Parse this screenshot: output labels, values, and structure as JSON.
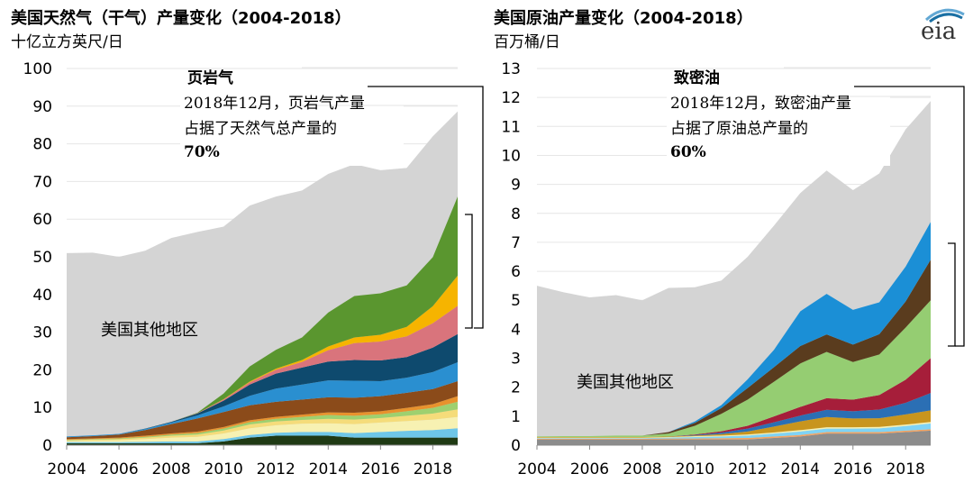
{
  "brand": {
    "logo_text": "eia",
    "accent": "#1a6fa3",
    "accent2": "#63a8d4"
  },
  "chart_data": [
    {
      "type": "area",
      "title": "美国天然气（干气）产量变化（2004-2018）",
      "ylabel": "十亿立方英尺/日",
      "xlabel": "",
      "ylim": [
        0,
        100
      ],
      "yticks": [
        0,
        10,
        20,
        30,
        40,
        50,
        60,
        70,
        80,
        90,
        100
      ],
      "xticks": [
        "2004",
        "2006",
        "2008",
        "2010",
        "2012",
        "2014",
        "2016",
        "2018"
      ],
      "x": [
        2004,
        2005,
        2006,
        2007,
        2008,
        2009,
        2010,
        2011,
        2012,
        2013,
        2014,
        2015,
        2016,
        2017,
        2018,
        2018.95
      ],
      "total": {
        "name": "美国其他地区",
        "color": "#d4d4d4",
        "values": [
          51,
          50.5,
          50,
          51,
          55,
          56,
          58,
          63,
          66,
          67,
          72,
          74,
          73,
          73,
          82,
          88
        ]
      },
      "series": [
        {
          "name": "layer1",
          "color": "#1f3a14",
          "values": [
            0.5,
            0.5,
            0.5,
            0.5,
            0.5,
            0.5,
            1,
            2,
            2.5,
            2.5,
            2.5,
            2,
            2,
            2,
            2,
            2
          ]
        },
        {
          "name": "layer2",
          "color": "#6ec6e8",
          "values": [
            0.3,
            0.3,
            0.3,
            0.4,
            0.5,
            0.5,
            0.6,
            0.7,
            0.8,
            1,
            1,
            1.2,
            1.5,
            1.8,
            2,
            2.5
          ]
        },
        {
          "name": "layer3",
          "color": "#f7f1b2",
          "values": [
            0.3,
            0.4,
            0.5,
            0.7,
            1,
            1.2,
            1.5,
            1.8,
            2,
            2.2,
            2.3,
            2.4,
            2.5,
            2.6,
            2.8,
            3
          ]
        },
        {
          "name": "layer4",
          "color": "#f5dc7a",
          "values": [
            0.2,
            0.3,
            0.3,
            0.4,
            0.5,
            0.6,
            0.8,
            1,
            1,
            1,
            1.2,
            1.2,
            1.2,
            1.4,
            1.6,
            2
          ]
        },
        {
          "name": "layer5",
          "color": "#9ed06f",
          "values": [
            0.1,
            0.1,
            0.2,
            0.2,
            0.3,
            0.4,
            0.5,
            0.6,
            0.7,
            0.8,
            1,
            1,
            1,
            1.2,
            1.5,
            2
          ]
        },
        {
          "name": "layer6",
          "color": "#e8922d",
          "values": [
            0.2,
            0.2,
            0.2,
            0.3,
            0.3,
            0.4,
            0.4,
            0.5,
            0.5,
            0.6,
            0.7,
            0.8,
            0.8,
            0.9,
            1,
            1.5
          ]
        },
        {
          "name": "layer7",
          "color": "#8b4b1a",
          "values": [
            0.5,
            0.6,
            0.8,
            1.5,
            2.5,
            3.5,
            4,
            4,
            4,
            4,
            4,
            4,
            4,
            4,
            4,
            4
          ]
        },
        {
          "name": "layer8",
          "color": "#2a8fd0",
          "values": [
            0.2,
            0.2,
            0.2,
            0.3,
            0.4,
            0.8,
            1.5,
            2.5,
            3.5,
            4,
            4.5,
            4.5,
            4,
            4,
            4.5,
            5
          ]
        },
        {
          "name": "layer9",
          "color": "#0e4a6e",
          "values": [
            0,
            0,
            0,
            0.1,
            0.2,
            0.5,
            1.5,
            3,
            4,
            4.5,
            5,
            5.5,
            5.5,
            5.5,
            6.5,
            7.5
          ]
        },
        {
          "name": "layer10",
          "color": "#d9747c",
          "values": [
            0,
            0,
            0,
            0,
            0,
            0.1,
            0.3,
            0.6,
            1,
            1.5,
            3,
            4.5,
            5,
            5.5,
            6.5,
            7.5
          ]
        },
        {
          "name": "layer11",
          "color": "#f6b400",
          "values": [
            0,
            0,
            0,
            0,
            0,
            0,
            0.1,
            0.2,
            0.3,
            0.5,
            1,
            1.5,
            1.8,
            2.5,
            4.5,
            8
          ]
        },
        {
          "name": "layer12",
          "color": "#5a962f",
          "values": [
            0,
            0,
            0,
            0,
            0,
            0.1,
            1.5,
            4,
            5,
            6,
            9,
            11,
            11,
            11,
            13,
            21
          ]
        }
      ],
      "annotation": {
        "title": "页岩气",
        "line1": "2018年12月，页岩气产量",
        "line2": "占据了天然气总产量的",
        "value": "70%"
      },
      "region_label": "美国其他地区"
    },
    {
      "type": "area",
      "title": "美国原油产量变化（2004-2018）",
      "ylabel": "百万桶/日",
      "xlabel": "",
      "ylim": [
        0,
        13
      ],
      "yticks": [
        0,
        1,
        2,
        3,
        4,
        5,
        6,
        7,
        8,
        9,
        10,
        11,
        12,
        13
      ],
      "xticks": [
        "2004",
        "2006",
        "2008",
        "2010",
        "2012",
        "2014",
        "2016",
        "2018"
      ],
      "x": [
        2004,
        2005,
        2006,
        2007,
        2008,
        2009,
        2010,
        2011,
        2012,
        2013,
        2014,
        2015,
        2016,
        2017,
        2018,
        2018.95
      ],
      "total": {
        "name": "美国其他地区",
        "color": "#d4d4d4",
        "values": [
          5.5,
          5.2,
          5.1,
          5.1,
          5.0,
          5.35,
          5.45,
          5.6,
          6.5,
          7.5,
          8.7,
          9.4,
          8.8,
          9.3,
          10.9,
          11.8
        ]
      },
      "series": [
        {
          "name": "layer1",
          "color": "#8c8c8c",
          "values": [
            0.2,
            0.2,
            0.2,
            0.2,
            0.2,
            0.2,
            0.2,
            0.2,
            0.2,
            0.25,
            0.3,
            0.4,
            0.4,
            0.4,
            0.45,
            0.5
          ]
        },
        {
          "name": "layer2",
          "color": "#f3a463",
          "values": [
            0.02,
            0.02,
            0.02,
            0.02,
            0.02,
            0.03,
            0.03,
            0.04,
            0.05,
            0.05,
            0.05,
            0.05,
            0.05,
            0.05,
            0.05,
            0.05
          ]
        },
        {
          "name": "layer3",
          "color": "#7fd3f5",
          "values": [
            0.02,
            0.02,
            0.02,
            0.02,
            0.02,
            0.03,
            0.05,
            0.06,
            0.08,
            0.1,
            0.12,
            0.12,
            0.12,
            0.13,
            0.16,
            0.2
          ]
        },
        {
          "name": "layer4",
          "color": "#f7f1b2",
          "values": [
            0.02,
            0.02,
            0.02,
            0.02,
            0.02,
            0.02,
            0.03,
            0.03,
            0.04,
            0.04,
            0.05,
            0.05,
            0.05,
            0.05,
            0.05,
            0.05
          ]
        },
        {
          "name": "layer5",
          "color": "#c8951e",
          "values": [
            0.02,
            0.02,
            0.02,
            0.02,
            0.02,
            0.02,
            0.02,
            0.05,
            0.1,
            0.2,
            0.3,
            0.35,
            0.3,
            0.3,
            0.35,
            0.4
          ]
        },
        {
          "name": "layer6",
          "color": "#2b6fb4",
          "values": [
            0,
            0,
            0,
            0,
            0,
            0,
            0.02,
            0.05,
            0.1,
            0.15,
            0.2,
            0.25,
            0.25,
            0.3,
            0.4,
            0.6
          ]
        },
        {
          "name": "layer7",
          "color": "#a61e3a",
          "values": [
            0,
            0,
            0,
            0,
            0,
            0,
            0.02,
            0.05,
            0.1,
            0.2,
            0.3,
            0.4,
            0.4,
            0.5,
            0.8,
            1.2
          ]
        },
        {
          "name": "layer8",
          "color": "#95cd72",
          "values": [
            0.02,
            0.03,
            0.03,
            0.05,
            0.05,
            0.1,
            0.3,
            0.6,
            0.9,
            1.2,
            1.5,
            1.6,
            1.3,
            1.4,
            1.8,
            2.0
          ]
        },
        {
          "name": "layer9",
          "color": "#5a3c1e",
          "values": [
            0,
            0,
            0,
            0,
            0,
            0.05,
            0.1,
            0.2,
            0.4,
            0.5,
            0.6,
            0.6,
            0.6,
            0.7,
            0.9,
            1.4
          ]
        },
        {
          "name": "layer10",
          "color": "#1b8fd6",
          "values": [
            0,
            0,
            0,
            0,
            0,
            0,
            0.05,
            0.1,
            0.3,
            0.6,
            1.2,
            1.4,
            1.2,
            1.1,
            1.2,
            1.3
          ]
        }
      ],
      "annotation": {
        "title": "致密油",
        "line1": "2018年12月，致密油产量",
        "line2": "占据了原油总产量的",
        "value": "60%"
      },
      "region_label": "美国其他地区"
    }
  ]
}
